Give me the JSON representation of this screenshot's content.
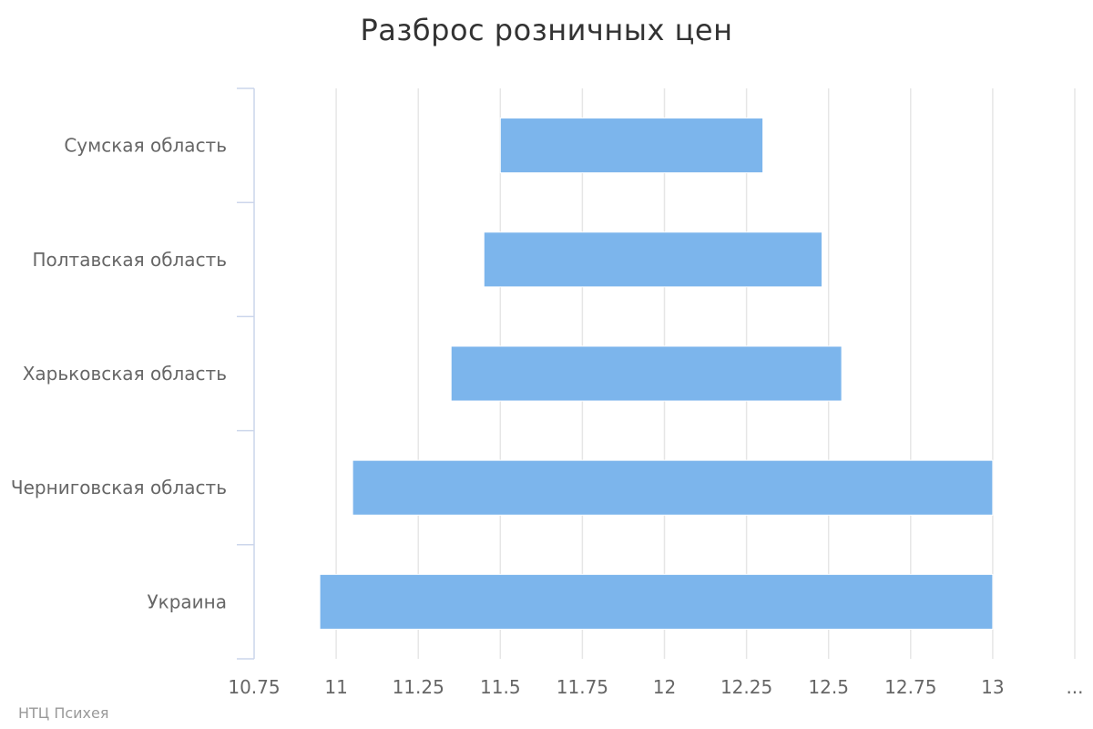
{
  "credits": "НТЦ Психея",
  "chart_data": {
    "type": "bar",
    "orientation": "horizontal",
    "subtype": "columnrange",
    "title": "Разброс розничных цен",
    "xlabel": "",
    "ylabel": "",
    "categories": [
      "Сумская область",
      "Полтавская область",
      "Харьковская область",
      "Черниговская область",
      "Украина"
    ],
    "series": [
      {
        "low": [
          11.5,
          11.45,
          11.35,
          11.05,
          10.95
        ],
        "high": [
          12.3,
          12.48,
          12.54,
          13.0,
          13.0
        ]
      }
    ],
    "xlim": [
      10.75,
      13.25
    ],
    "tick_labels": [
      "10.75",
      "11",
      "11.25",
      "11.5",
      "11.75",
      "12",
      "12.25",
      "12.5",
      "12.75",
      "13",
      "..."
    ],
    "grid": true,
    "legend": "none",
    "bar_color": "#7cb5ec",
    "grid_color": "#e6e6e6",
    "axis_color": "#ccd6eb"
  }
}
